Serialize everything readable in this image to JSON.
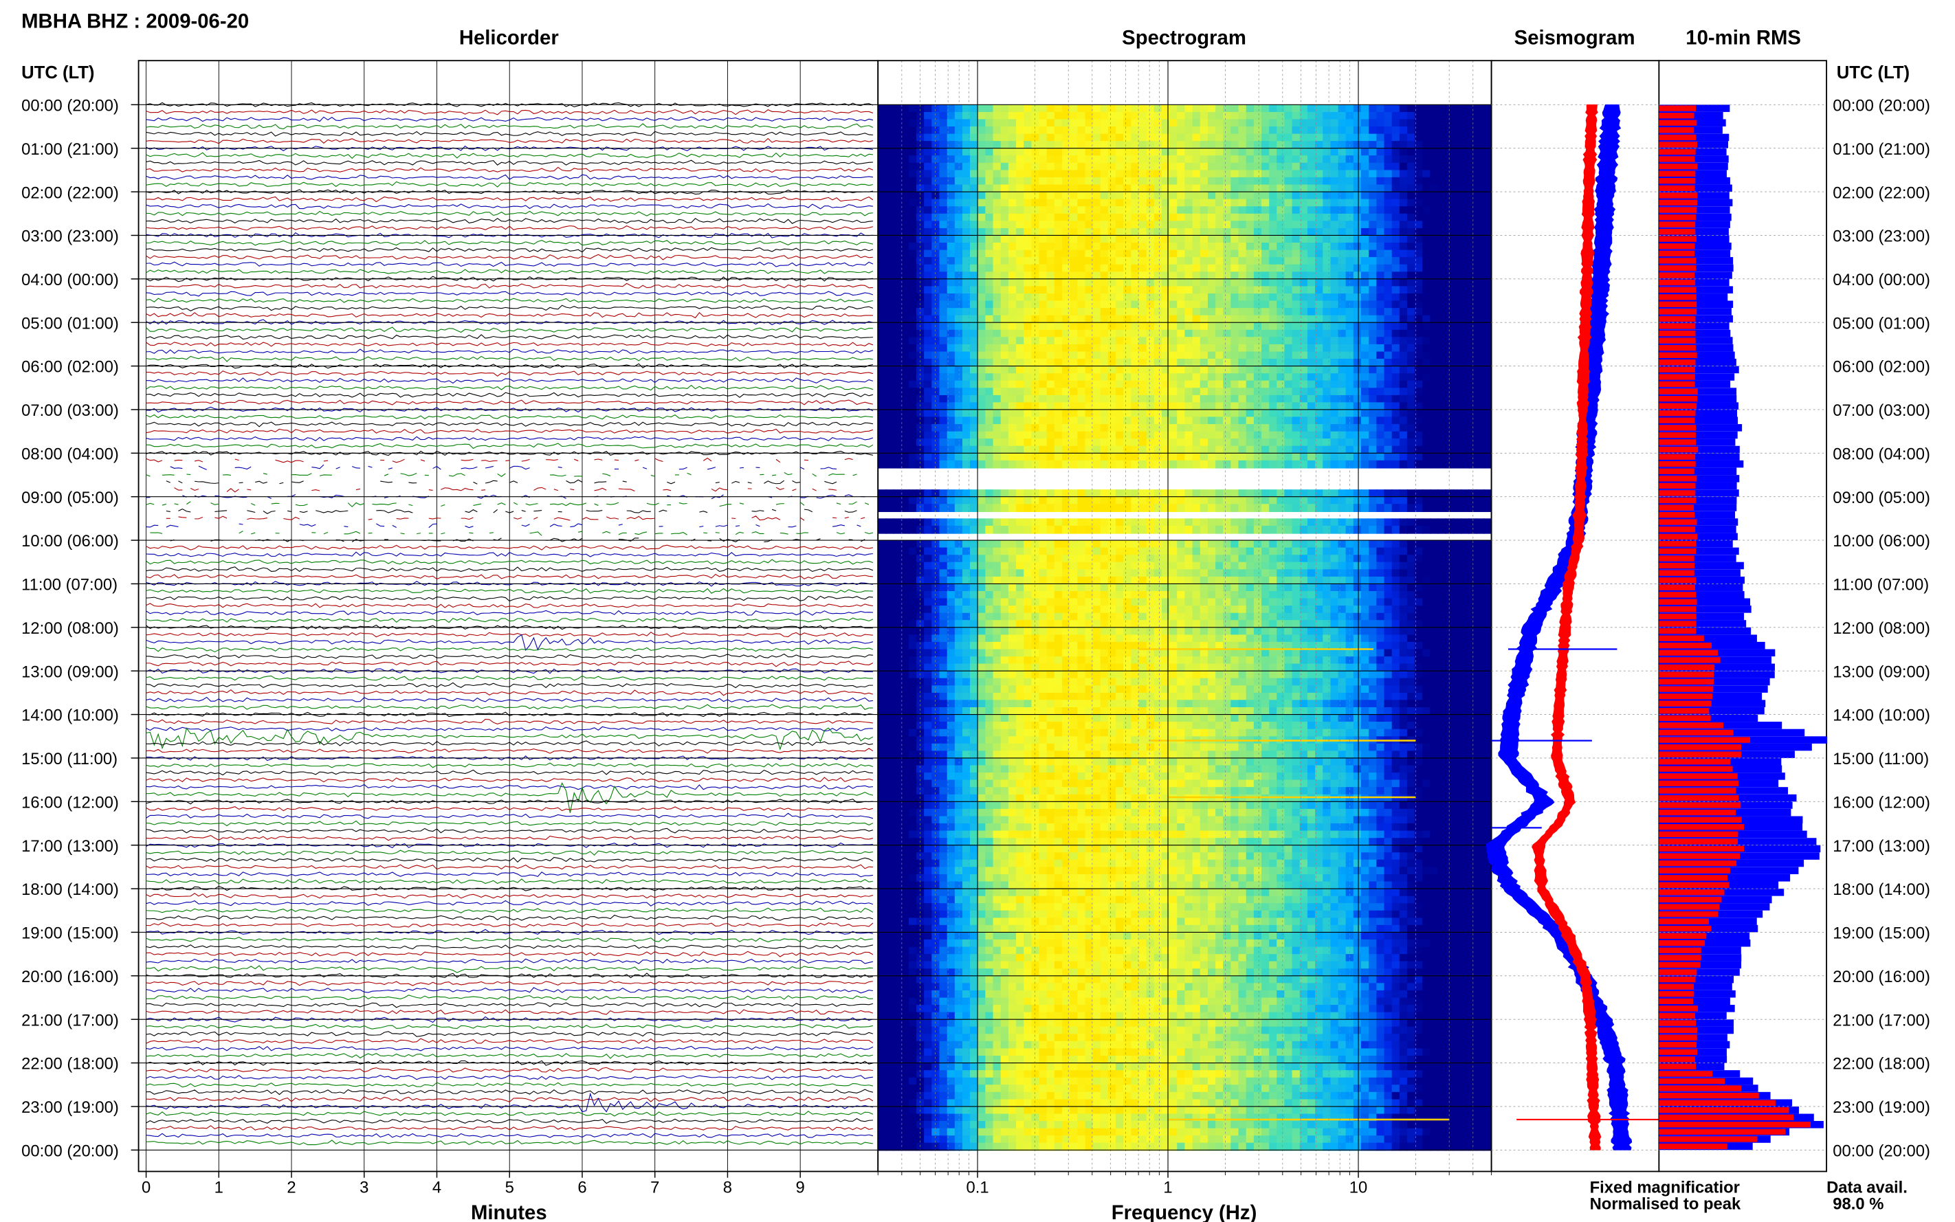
{
  "header": {
    "station_title": "MBHA BHZ : 2009-06-20"
  },
  "panels": {
    "helicorder_title": "Helicorder",
    "spectrogram_title": "Spectrogram",
    "seismogram_title": "Seismogram",
    "rms_title": "10-min RMS"
  },
  "axes": {
    "left_header": "UTC (LT)",
    "right_header": "UTC (LT)",
    "time_labels": [
      "00:00 (20:00)",
      "01:00 (21:00)",
      "02:00 (22:00)",
      "03:00 (23:00)",
      "04:00 (00:00)",
      "05:00 (01:00)",
      "06:00 (02:00)",
      "07:00 (03:00)",
      "08:00 (04:00)",
      "09:00 (05:00)",
      "10:00 (06:00)",
      "11:00 (07:00)",
      "12:00 (08:00)",
      "13:00 (09:00)",
      "14:00 (10:00)",
      "15:00 (11:00)",
      "16:00 (12:00)",
      "17:00 (13:00)",
      "18:00 (14:00)",
      "19:00 (15:00)",
      "20:00 (16:00)",
      "21:00 (17:00)",
      "22:00 (18:00)",
      "23:00 (19:00)",
      "00:00 (20:00)"
    ],
    "minutes_xlabel": "Minutes",
    "minutes_ticks": [
      "0",
      "1",
      "2",
      "3",
      "4",
      "5",
      "6",
      "7",
      "8",
      "9"
    ],
    "freq_xlabel": "Frequency (Hz)",
    "freq_ticks": [
      "0.1",
      "1",
      "10"
    ]
  },
  "legend": {
    "fixed_label": "Fixed magnificatior",
    "fixed_color": "#1010ff",
    "normalised_label": "Normalised to peak",
    "normalised_color": "#ff1010"
  },
  "availability": {
    "label": "Data avail.",
    "value": "98.0 %"
  },
  "colors": {
    "trace_cycle": [
      "#000000",
      "#b00000",
      "#0000b0",
      "#008000"
    ],
    "rms_fixed": "#0000ff",
    "rms_normalised": "#ff0000"
  },
  "chart_data": [
    {
      "type": "line",
      "title": "Helicorder",
      "xlabel": "Minutes",
      "xlim": [
        0,
        10
      ],
      "ylim": [
        0,
        24
      ],
      "events": [
        {
          "hour": 8.5,
          "minute_start": 0,
          "minute_end": 10,
          "color": "mixed",
          "kind": "gap"
        },
        {
          "hour": 12.33,
          "minute_start": 5.1,
          "minute_end": 6.2,
          "color": "#0000b0",
          "kind": "quake"
        },
        {
          "hour": 14.5,
          "minute_start": 0,
          "minute_end": 3,
          "color": "#000000",
          "kind": "quake"
        },
        {
          "hour": 14.5,
          "minute_start": 8.7,
          "minute_end": 10,
          "color": "#008000",
          "kind": "quake"
        },
        {
          "hour": 15.83,
          "minute_start": 5.7,
          "minute_end": 7.3,
          "color": "#008000",
          "kind": "quake"
        },
        {
          "hour": 19.83,
          "minute_start": 4.25,
          "minute_end": 4.35,
          "color": "#008000",
          "kind": "spike"
        },
        {
          "hour": 23.0,
          "minute_start": 6.0,
          "minute_end": 7.5,
          "color": "#008000",
          "kind": "quake"
        }
      ]
    },
    {
      "type": "heatmap",
      "title": "Spectrogram",
      "xlabel": "Frequency (Hz)",
      "xscale": "log",
      "xlim": [
        0.03,
        50
      ],
      "ylim": [
        0,
        24
      ],
      "peak_frequency_hz": 0.3,
      "gaps_hours": [
        [
          8.2,
          8.9
        ],
        [
          9.2,
          9.5
        ],
        [
          9.8,
          10.1
        ]
      ],
      "band_lines": [
        {
          "hour": 12.5,
          "f_min": 0.7,
          "f_max": 12
        },
        {
          "hour": 14.6,
          "f_min": 0.8,
          "f_max": 20
        },
        {
          "hour": 15.9,
          "f_min": 1.0,
          "f_max": 20
        },
        {
          "hour": 23.3,
          "f_min": 1.0,
          "f_max": 30
        }
      ]
    },
    {
      "type": "line",
      "title": "Seismogram",
      "series": [
        {
          "name": "Fixed magnificatior",
          "hours": [
            0,
            1,
            2,
            3,
            4,
            5,
            6,
            7,
            8,
            9,
            10,
            11,
            12,
            13,
            14,
            15,
            16,
            17,
            17.5,
            18,
            19,
            20,
            21,
            22,
            23,
            24
          ],
          "offset": [
            0.72,
            0.7,
            0.68,
            0.67,
            0.65,
            0.63,
            0.61,
            0.58,
            0.56,
            0.54,
            0.5,
            0.38,
            0.24,
            0.18,
            0.12,
            0.1,
            0.32,
            0.02,
            0.05,
            0.12,
            0.4,
            0.55,
            0.66,
            0.74,
            0.76,
            0.78
          ]
        },
        {
          "name": "Normalised to peak",
          "hours": [
            0,
            2,
            4,
            6,
            8,
            10,
            11,
            12,
            13,
            14,
            15,
            16,
            16.5,
            17,
            18,
            19,
            20,
            21,
            22,
            23,
            24
          ],
          "offset": [
            0.6,
            0.58,
            0.57,
            0.55,
            0.54,
            0.52,
            0.46,
            0.44,
            0.42,
            0.4,
            0.39,
            0.47,
            0.4,
            0.28,
            0.3,
            0.45,
            0.56,
            0.59,
            0.6,
            0.61,
            0.62
          ]
        }
      ]
    },
    {
      "type": "bar",
      "title": "10-min RMS",
      "series": [
        {
          "name": "Fixed magnificatior",
          "hour_blocks": [
            0,
            2,
            4,
            6,
            8,
            10,
            12,
            12.5,
            14,
            14.5,
            15,
            16,
            17,
            18,
            19,
            20,
            22,
            23.3,
            24
          ],
          "values": [
            0.4,
            0.42,
            0.43,
            0.45,
            0.48,
            0.46,
            0.55,
            0.7,
            0.58,
            1.0,
            0.72,
            0.8,
            0.95,
            0.7,
            0.55,
            0.45,
            0.4,
            0.95,
            0.4
          ]
        },
        {
          "name": "Normalised to peak",
          "hour_blocks": [
            0,
            2,
            4,
            6,
            8,
            10,
            12,
            12.5,
            14,
            14.5,
            15,
            16,
            17,
            18,
            19,
            20,
            22,
            23.3,
            24
          ],
          "values": [
            0.22,
            0.22,
            0.22,
            0.22,
            0.22,
            0.22,
            0.22,
            0.35,
            0.3,
            0.55,
            0.45,
            0.48,
            0.5,
            0.4,
            0.28,
            0.22,
            0.22,
            0.95,
            0.22
          ]
        }
      ]
    }
  ]
}
